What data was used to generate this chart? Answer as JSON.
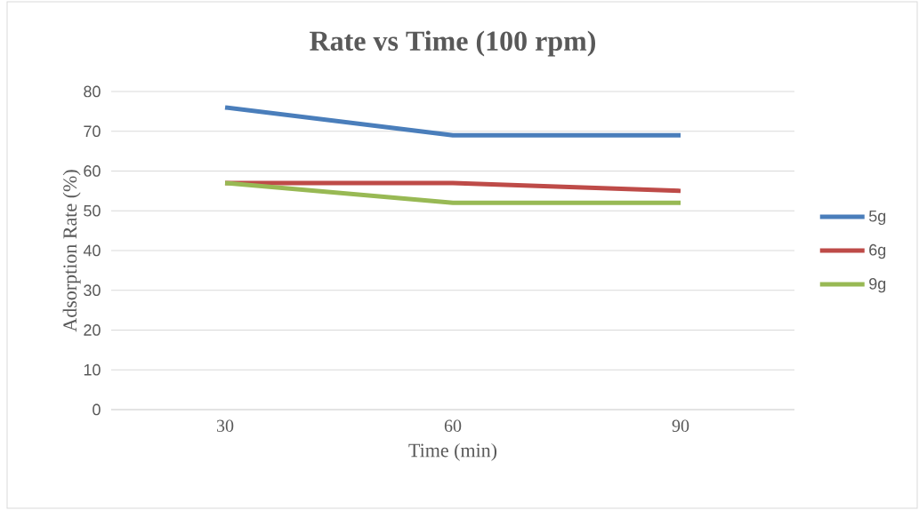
{
  "chart_data": {
    "type": "line",
    "title": "Rate vs Time (100 rpm)",
    "xlabel": "Time (min)",
    "ylabel": "Adsorption Rate (%)",
    "categories": [
      "30",
      "60",
      "90"
    ],
    "series": [
      {
        "name": "5g",
        "color": "#4a7ebb",
        "values": [
          76,
          69,
          69
        ]
      },
      {
        "name": "6g",
        "color": "#be4b48",
        "values": [
          57,
          57,
          55
        ]
      },
      {
        "name": "9g",
        "color": "#98b954",
        "values": [
          57,
          52,
          52
        ]
      }
    ],
    "ylim": [
      0,
      80
    ],
    "yticks": [
      0,
      10,
      20,
      30,
      40,
      50,
      60,
      70,
      80
    ],
    "grid": "y",
    "legend": "right",
    "marker": "none",
    "line_style": "solid"
  }
}
